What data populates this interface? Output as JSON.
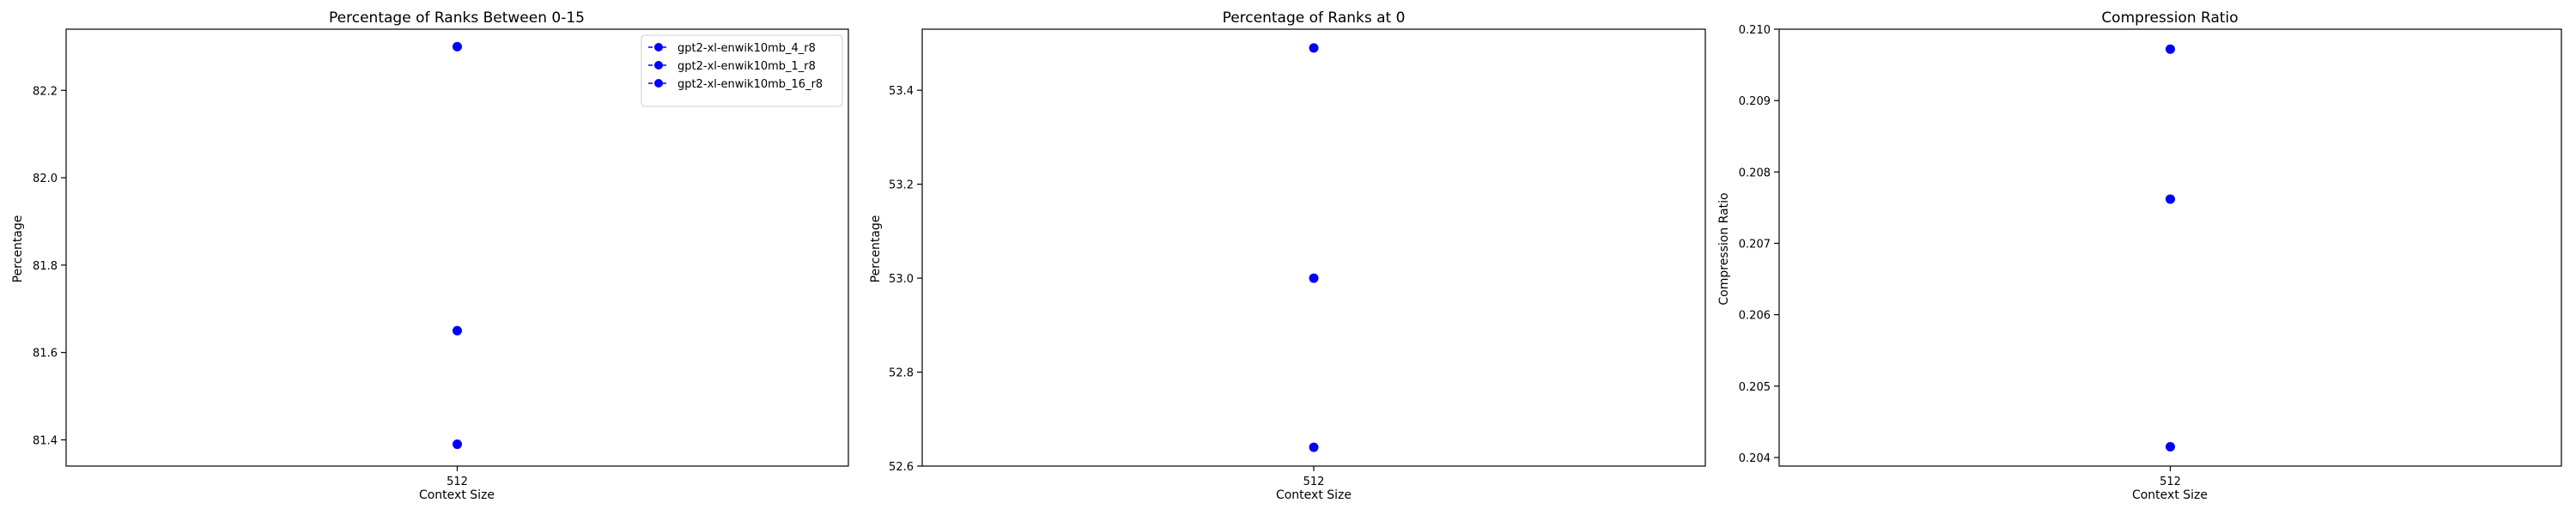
{
  "chart_data": [
    {
      "type": "line",
      "title": "Percentage of Ranks Between 0-15",
      "xlabel": "Context Size",
      "ylabel": "Percentage",
      "categories": [
        "512"
      ],
      "ylim": [
        81.34,
        82.34
      ],
      "yticks": [
        "81.4",
        "81.6",
        "81.8",
        "82.0",
        "82.2"
      ],
      "legend": "upper-right",
      "series": [
        {
          "name": "gpt2-xl-enwik10mb_4_r8",
          "values": [
            82.3
          ],
          "color": "#0000ff"
        },
        {
          "name": "gpt2-xl-enwik10mb_1_r8",
          "values": [
            81.65
          ],
          "color": "#0000ff"
        },
        {
          "name": "gpt2-xl-enwik10mb_16_r8",
          "values": [
            81.39
          ],
          "color": "#0000ff"
        }
      ]
    },
    {
      "type": "line",
      "title": "Percentage of Ranks at 0",
      "xlabel": "Context Size",
      "ylabel": "Percentage",
      "categories": [
        "512"
      ],
      "ylim": [
        52.6,
        53.53
      ],
      "yticks": [
        "52.6",
        "52.8",
        "53.0",
        "53.2",
        "53.4"
      ],
      "series": [
        {
          "values": [
            53.49
          ],
          "color": "#0000ff"
        },
        {
          "values": [
            53.0
          ],
          "color": "#0000ff"
        },
        {
          "values": [
            52.64
          ],
          "color": "#0000ff"
        }
      ]
    },
    {
      "type": "line",
      "title": "Compression Ratio",
      "xlabel": "Context Size",
      "ylabel": "Compression Ratio",
      "categories": [
        "512"
      ],
      "ylim": [
        0.20388,
        0.21
      ],
      "yticks": [
        "0.204",
        "0.205",
        "0.206",
        "0.207",
        "0.208",
        "0.209",
        "0.210"
      ],
      "series": [
        {
          "values": [
            0.20972
          ],
          "color": "#0000ff"
        },
        {
          "values": [
            0.20762
          ],
          "color": "#0000ff"
        },
        {
          "values": [
            0.20415
          ],
          "color": "#0000ff"
        }
      ]
    }
  ]
}
